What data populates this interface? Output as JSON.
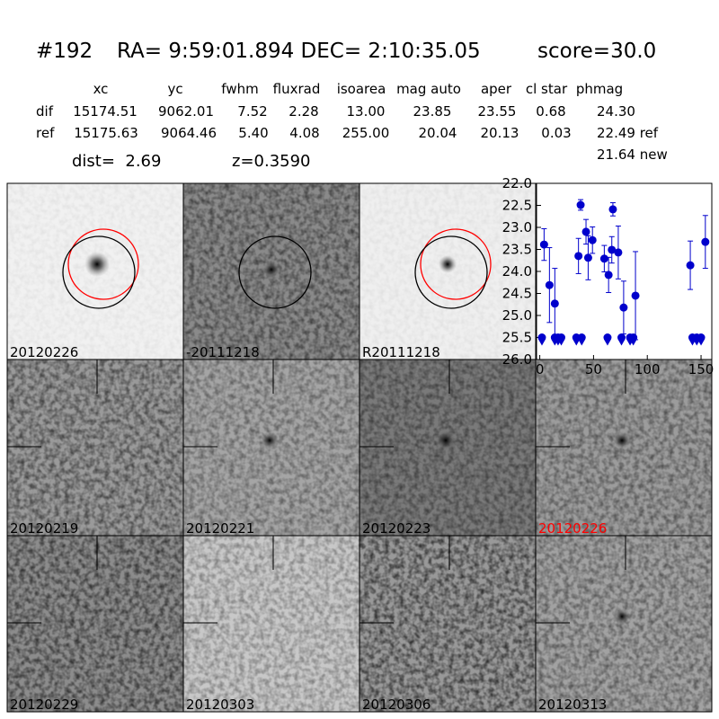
{
  "header": {
    "id": "#192",
    "coords": "RA= 9:59:01.894 DEC= 2:10:35.05",
    "score": "score=30.0"
  },
  "table": {
    "columns": [
      "xc",
      "yc",
      "fwhm",
      "fluxrad",
      "isoarea",
      "mag auto",
      "aper",
      "cl star",
      "phmag"
    ],
    "rows": [
      [
        "dif",
        "15174.51",
        "9062.01",
        "7.52",
        "2.28",
        "13.00",
        "23.85",
        "23.55",
        "0.68",
        "24.30"
      ],
      [
        "ref",
        "15175.63",
        "9064.46",
        "5.40",
        "4.08",
        "255.00",
        "20.04",
        "20.13",
        "0.03",
        "22.49 ref"
      ]
    ],
    "extra": "21.64 new",
    "dist": "dist=  2.69",
    "z": "z=0.3590"
  },
  "panels": [
    {
      "label": "20120226"
    },
    {
      "label": "-20111218"
    },
    {
      "label": "R20111218"
    },
    {
      "label": "20120219"
    },
    {
      "label": "20120221"
    },
    {
      "label": "20120223"
    },
    {
      "label": "20120226",
      "color": "#ff0000"
    },
    {
      "label": "20120229"
    },
    {
      "label": "20120303"
    },
    {
      "label": "20120306"
    },
    {
      "label": "20120313"
    }
  ],
  "chart_data": {
    "type": "scatter",
    "xlim": [
      -3,
      160
    ],
    "xticks": [
      0,
      50,
      100,
      150
    ],
    "ylim": [
      26,
      22
    ],
    "yticks": [
      {
        "value": 22,
        "label": "22.0"
      },
      22.5,
      {
        "value": 23,
        "label": "23.0"
      },
      23.5,
      {
        "value": 24,
        "label": "24.0"
      },
      24.5,
      {
        "value": 25,
        "label": "25.0"
      },
      25.5,
      {
        "value": 26,
        "label": "26.0"
      }
    ],
    "series": [
      {
        "color": "#0000cc",
        "x": [
          4,
          9,
          14,
          36,
          38,
          43,
          45,
          49,
          60,
          64,
          67,
          68,
          73,
          78,
          89,
          140,
          154
        ],
        "values": [
          23.39,
          24.31,
          24.73,
          23.65,
          22.49,
          23.1,
          23.69,
          23.29,
          23.71,
          24.08,
          23.51,
          22.59,
          23.57,
          24.82,
          24.55,
          23.86,
          23.33
        ],
        "errors": [
          0.36,
          0.85,
          0.8,
          0.4,
          0.12,
          0.28,
          0.5,
          0.3,
          0.3,
          0.4,
          0.3,
          0.15,
          0.6,
          0.6,
          1.0,
          0.55,
          0.6
        ]
      },
      {
        "color": "#0000cc",
        "x": [
          2,
          14,
          17,
          20,
          34,
          39,
          63,
          76,
          84,
          87,
          142,
          146,
          150
        ],
        "values": [
          25.5,
          25.5,
          25.5,
          25.5,
          25.5,
          25.5,
          25.5,
          25.5,
          25.5,
          25.5,
          25.5,
          25.5,
          25.5
        ]
      }
    ]
  }
}
